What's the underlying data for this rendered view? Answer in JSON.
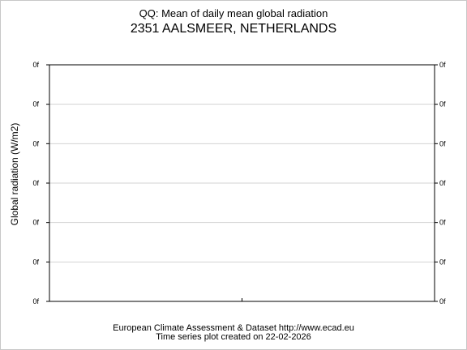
{
  "title": "QQ: Mean of daily mean global radiation",
  "station": "2351 AALSMEER, NETHERLANDS",
  "footer": {
    "line1": "European Climate Assessment & Dataset  http://www.ecad.eu",
    "line2": "Time series plot created on 22-02-2026"
  },
  "chart_data": {
    "type": "line",
    "title": "QQ: Mean of daily mean global radiation",
    "subtitle": "2351 AALSMEER, NETHERLANDS",
    "ylabel": "Global radiation (W/m2)",
    "xlabel": "",
    "y_tick_labels": [
      "0f",
      "0f",
      "0f",
      "0f",
      "0f",
      "0f",
      "0f"
    ],
    "grid": true,
    "series": [],
    "colors": {
      "axis": "#000000",
      "grid": "#d3d3d3",
      "frame": "#c8c8c8"
    }
  }
}
